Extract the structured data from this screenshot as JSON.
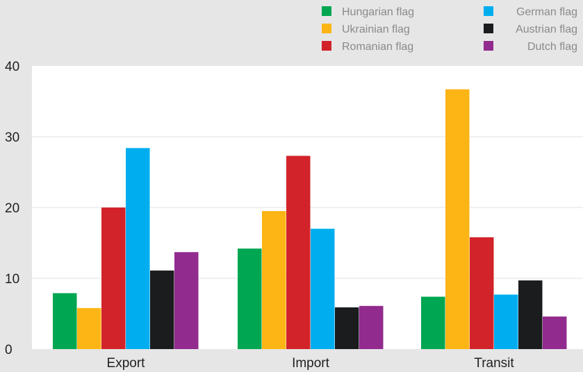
{
  "chart_data": {
    "type": "bar",
    "categories": [
      "Export",
      "Import",
      "Transit"
    ],
    "series": [
      {
        "name": "Hungarian flag",
        "color": "#00a651",
        "values": [
          7.9,
          14.2,
          7.4
        ]
      },
      {
        "name": "Ukrainian flag",
        "color": "#fdb515",
        "values": [
          5.8,
          19.5,
          36.7
        ]
      },
      {
        "name": "Romanian flag",
        "color": "#d2232a",
        "values": [
          20.0,
          27.3,
          15.8
        ]
      },
      {
        "name": "German flag",
        "color": "#00aeef",
        "values": [
          28.4,
          17.0,
          7.7
        ]
      },
      {
        "name": "Austrian flag",
        "color": "#1a1c1e",
        "values": [
          11.1,
          5.9,
          9.7
        ]
      },
      {
        "name": "Dutch flag",
        "color": "#922b8e",
        "values": [
          13.7,
          6.1,
          4.6
        ]
      }
    ],
    "ylim": [
      0,
      40
    ],
    "yticks": [
      0,
      10,
      20,
      30,
      40
    ],
    "grid": true,
    "legend": "top-right",
    "xlabel": "",
    "ylabel": ""
  }
}
